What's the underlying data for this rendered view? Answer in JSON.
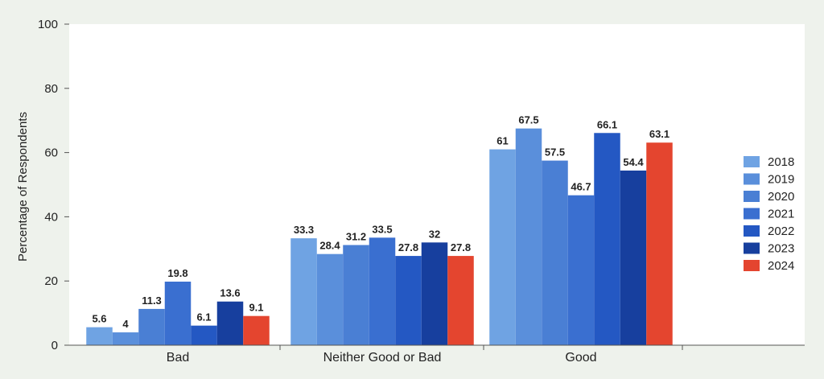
{
  "chart_data": {
    "type": "bar",
    "categories": [
      "Bad",
      "Neither Good or Bad",
      "Good"
    ],
    "series": [
      {
        "name": "2018",
        "values": [
          5.6,
          33.3,
          61
        ],
        "color": "#6fa3e3"
      },
      {
        "name": "2019",
        "values": [
          4,
          28.4,
          67.5
        ],
        "color": "#5a8fdb"
      },
      {
        "name": "2020",
        "values": [
          11.3,
          31.2,
          57.5
        ],
        "color": "#4a7fd4"
      },
      {
        "name": "2021",
        "values": [
          19.8,
          33.5,
          46.7
        ],
        "color": "#3a6fd0"
      },
      {
        "name": "2022",
        "values": [
          6.1,
          27.8,
          66.1
        ],
        "color": "#2458c3"
      },
      {
        "name": "2023",
        "values": [
          13.6,
          32,
          54.4
        ],
        "color": "#173f9e"
      },
      {
        "name": "2024",
        "values": [
          9.1,
          27.8,
          63.1
        ],
        "color": "#e4452f"
      }
    ],
    "data_labels": [
      [
        "5.6",
        "33.3",
        "61"
      ],
      [
        "4",
        "28.4",
        "67.5"
      ],
      [
        "11.3",
        "31.2",
        "57.5"
      ],
      [
        "19.8",
        "33.5",
        "46.7"
      ],
      [
        "6.1",
        "27.8",
        "66.1"
      ],
      [
        "13.6",
        "32",
        "54.4"
      ],
      [
        "9.1",
        "27.8",
        "63.1"
      ]
    ],
    "ylabel": "Percentage of Respondents",
    "xlabel": "",
    "ylim": [
      0,
      100
    ],
    "yticks": [
      0,
      20,
      40,
      60,
      80,
      100
    ],
    "grid": false,
    "legend_position": "right"
  }
}
